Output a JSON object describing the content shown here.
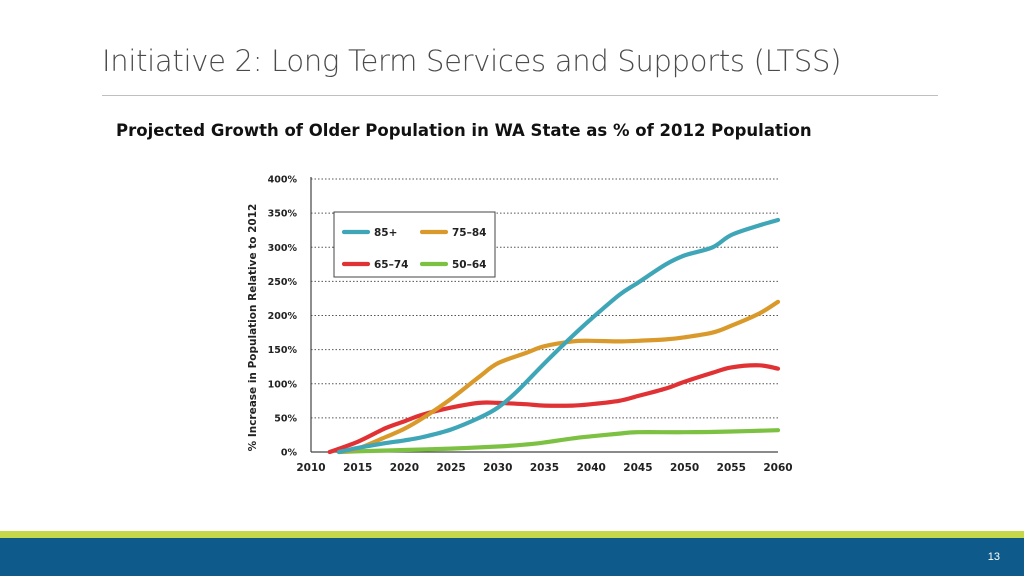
{
  "slide": {
    "title": "Initiative 2: Long Term Services and Supports (LTSS)",
    "page_number": "13"
  },
  "colors": {
    "accent_green": "#c6d84a",
    "footer_blue": "#0e5a8a"
  },
  "chart_data": {
    "type": "line",
    "title": "Projected Growth of Older Population in WA State as % of 2012 Population",
    "xlabel": "",
    "ylabel": "% Increase in Population Relative to 2012",
    "xlim": [
      2010,
      2060
    ],
    "ylim": [
      0,
      400
    ],
    "x_ticks": [
      2010,
      2015,
      2020,
      2025,
      2030,
      2035,
      2040,
      2045,
      2050,
      2055,
      2060
    ],
    "y_ticks": [
      {
        "value": 0,
        "label": "0%"
      },
      {
        "value": 50,
        "label": "50%"
      },
      {
        "value": 100,
        "label": "100%"
      },
      {
        "value": 150,
        "label": "150%"
      },
      {
        "value": 200,
        "label": "200%"
      },
      {
        "value": 250,
        "label": "250%"
      },
      {
        "value": 300,
        "label": "300%"
      },
      {
        "value": 350,
        "label": "350%"
      },
      {
        "value": 400,
        "label": "400%"
      }
    ],
    "grid": "horizontal dotted",
    "legend_position": "top-left",
    "series": [
      {
        "name": "85+",
        "color": "#3fa6b8",
        "points": [
          [
            2013,
            0
          ],
          [
            2015,
            6
          ],
          [
            2018,
            13
          ],
          [
            2020,
            17
          ],
          [
            2022,
            22
          ],
          [
            2025,
            33
          ],
          [
            2028,
            50
          ],
          [
            2030,
            65
          ],
          [
            2032,
            88
          ],
          [
            2035,
            130
          ],
          [
            2038,
            170
          ],
          [
            2040,
            195
          ],
          [
            2043,
            230
          ],
          [
            2045,
            248
          ],
          [
            2048,
            275
          ],
          [
            2050,
            288
          ],
          [
            2053,
            300
          ],
          [
            2055,
            318
          ],
          [
            2058,
            332
          ],
          [
            2060,
            340
          ]
        ]
      },
      {
        "name": "75–84",
        "color": "#d99a2b",
        "points": [
          [
            2013,
            0
          ],
          [
            2015,
            5
          ],
          [
            2018,
            22
          ],
          [
            2020,
            34
          ],
          [
            2022,
            50
          ],
          [
            2025,
            78
          ],
          [
            2028,
            110
          ],
          [
            2030,
            130
          ],
          [
            2033,
            145
          ],
          [
            2035,
            155
          ],
          [
            2038,
            162
          ],
          [
            2040,
            163
          ],
          [
            2043,
            162
          ],
          [
            2045,
            163
          ],
          [
            2048,
            165
          ],
          [
            2050,
            168
          ],
          [
            2053,
            175
          ],
          [
            2055,
            185
          ],
          [
            2058,
            203
          ],
          [
            2060,
            220
          ]
        ]
      },
      {
        "name": "65–74",
        "color": "#e03234",
        "points": [
          [
            2012,
            0
          ],
          [
            2015,
            15
          ],
          [
            2018,
            35
          ],
          [
            2020,
            45
          ],
          [
            2022,
            55
          ],
          [
            2025,
            65
          ],
          [
            2028,
            72
          ],
          [
            2030,
            72
          ],
          [
            2033,
            70
          ],
          [
            2035,
            68
          ],
          [
            2038,
            68
          ],
          [
            2040,
            70
          ],
          [
            2043,
            75
          ],
          [
            2045,
            82
          ],
          [
            2048,
            93
          ],
          [
            2050,
            103
          ],
          [
            2053,
            116
          ],
          [
            2055,
            124
          ],
          [
            2058,
            127
          ],
          [
            2060,
            122
          ]
        ]
      },
      {
        "name": "50–64",
        "color": "#7cc142",
        "points": [
          [
            2013,
            0
          ],
          [
            2015,
            1
          ],
          [
            2020,
            3
          ],
          [
            2025,
            5
          ],
          [
            2030,
            8
          ],
          [
            2033,
            11
          ],
          [
            2035,
            14
          ],
          [
            2038,
            20
          ],
          [
            2040,
            23
          ],
          [
            2043,
            27
          ],
          [
            2045,
            29
          ],
          [
            2050,
            29
          ],
          [
            2055,
            30
          ],
          [
            2060,
            32
          ]
        ]
      }
    ]
  }
}
